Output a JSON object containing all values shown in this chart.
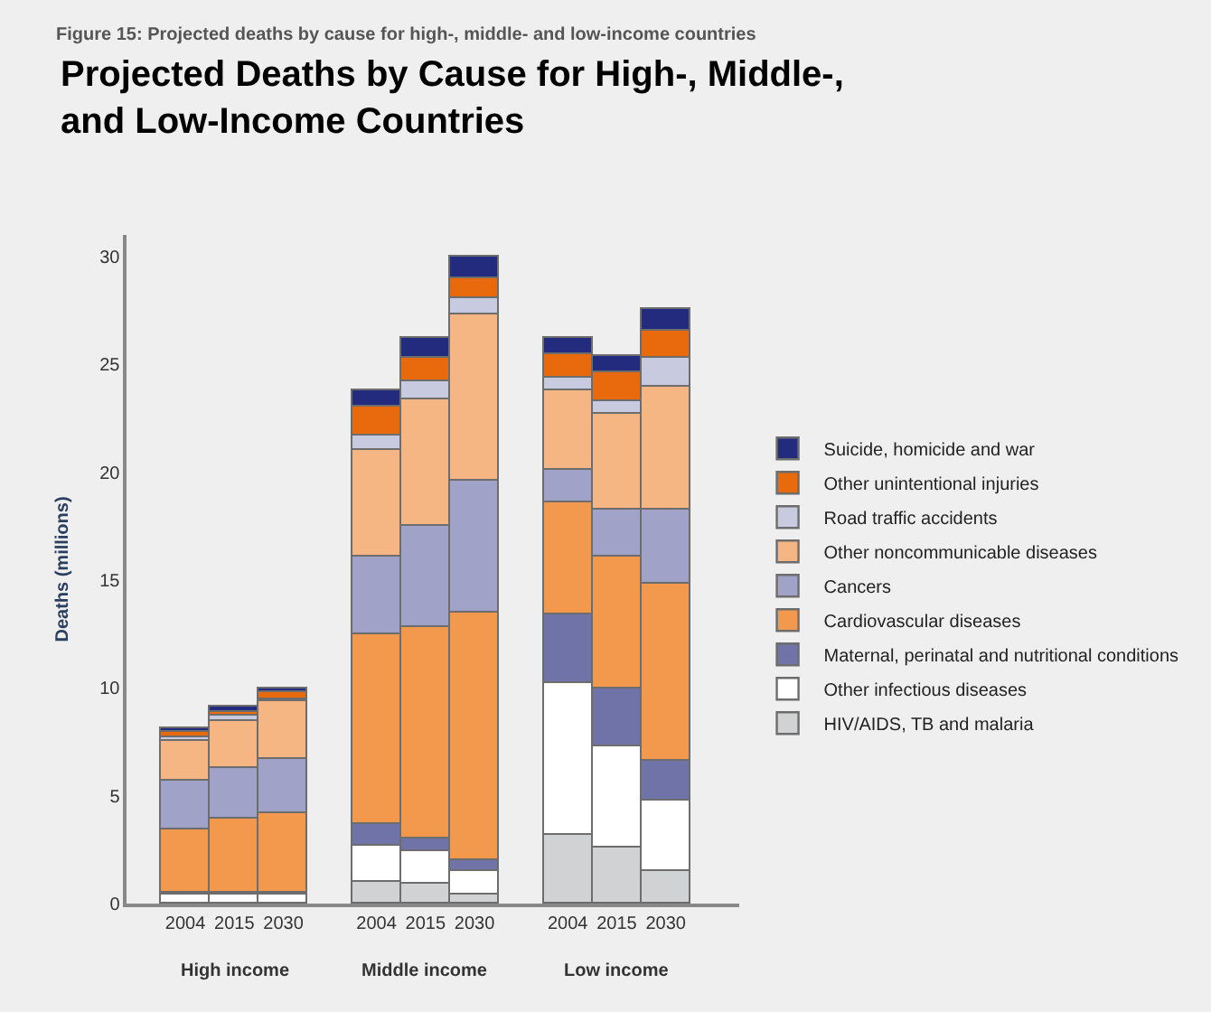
{
  "chart_data": {
    "type": "bar",
    "stacked": true,
    "title": "Projected Deaths by Cause for High-, Middle-, and Low-Income Countries",
    "ylabel": "Deaths (millions)",
    "categories": [
      "2004",
      "2015",
      "2030",
      "2004",
      "2015",
      "2030",
      "2004",
      "2015",
      "2030"
    ],
    "annotations": [
      "Figure 15: Projected deaths by cause for high-, middle- and low-income countries",
      "High income",
      "Middle income",
      "Low income"
    ],
    "ylim": [
      0,
      31
    ],
    "yticks": [
      0,
      5,
      10,
      15,
      20,
      25,
      30
    ],
    "grid": false,
    "legend": "right",
    "series": [
      {
        "name": "HIV/AIDS, TB and malaria",
        "color": "#d0d2d3",
        "values": [
          null,
          null,
          null,
          1.0,
          0.9,
          0.4,
          3.2,
          2.6,
          1.5
        ]
      },
      {
        "name": "Other infectious diseases",
        "color": "#ffffff",
        "values": [
          0.4,
          0.4,
          0.4,
          1.7,
          1.5,
          1.1,
          7.0,
          4.7,
          3.3
        ]
      },
      {
        "name": "Maternal, perinatal and nutritional conditions",
        "color": "#7073a8",
        "values": [
          0.1,
          0.1,
          0.1,
          1.0,
          0.6,
          0.5,
          3.2,
          2.7,
          1.8
        ]
      },
      {
        "name": "Cardiovascular diseases",
        "color": "#f2994e",
        "values": [
          2.9,
          3.4,
          3.7,
          8.8,
          9.8,
          11.5,
          5.2,
          6.1,
          8.2
        ]
      },
      {
        "name": "Cancers",
        "color": "#a0a2c8",
        "values": [
          2.3,
          2.4,
          2.5,
          3.6,
          4.7,
          6.1,
          1.5,
          2.2,
          3.5
        ]
      },
      {
        "name": "Other noncommunicable diseases",
        "color": "#f6b684",
        "values": [
          1.8,
          2.2,
          2.7,
          4.9,
          5.9,
          7.7,
          3.7,
          4.4,
          5.7
        ]
      },
      {
        "name": "Road traffic accidents",
        "color": "#c8cbe0",
        "values": [
          0.2,
          0.2,
          0.1,
          0.7,
          0.8,
          0.8,
          0.6,
          0.6,
          1.3
        ]
      },
      {
        "name": "Other unintentional injuries",
        "color": "#e96a0d",
        "values": [
          0.3,
          0.2,
          0.3,
          1.3,
          1.1,
          0.9,
          1.1,
          1.3,
          1.3
        ]
      },
      {
        "name": "Suicide, homicide and war",
        "color": "#232b7e",
        "values": [
          0.1,
          0.2,
          0.2,
          0.8,
          0.9,
          1.0,
          0.7,
          0.8,
          1.0
        ]
      }
    ]
  }
}
